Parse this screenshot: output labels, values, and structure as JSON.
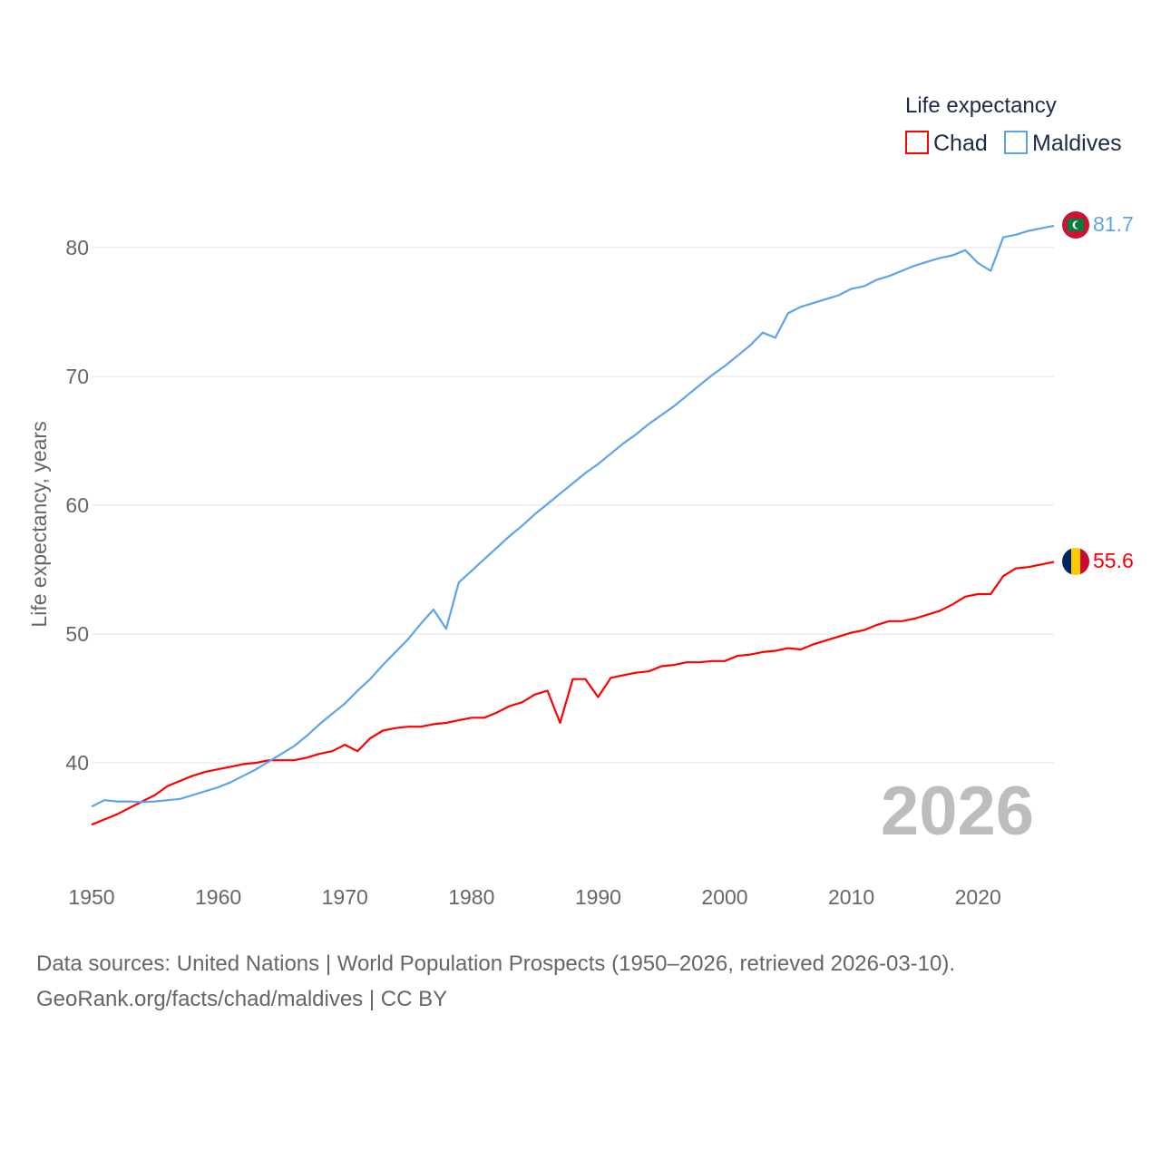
{
  "chart_data": {
    "type": "line",
    "title": "",
    "xlabel": "",
    "ylabel": "Life expectancy, years",
    "xlim": [
      1950,
      2026
    ],
    "ylim": [
      33,
      84
    ],
    "x_ticks": [
      "1950",
      "1960",
      "1970",
      "1980",
      "1990",
      "2000",
      "2010",
      "2020"
    ],
    "y_ticks": [
      "40",
      "50",
      "60",
      "70",
      "80"
    ],
    "grid": true,
    "legend": {
      "title": "Life expectancy",
      "placement": "top-right"
    },
    "year_label": "2026",
    "x": [
      1950,
      1951,
      1952,
      1953,
      1954,
      1955,
      1956,
      1957,
      1958,
      1959,
      1960,
      1961,
      1962,
      1963,
      1964,
      1965,
      1966,
      1967,
      1968,
      1969,
      1970,
      1971,
      1972,
      1973,
      1974,
      1975,
      1976,
      1977,
      1978,
      1979,
      1980,
      1981,
      1982,
      1983,
      1984,
      1985,
      1986,
      1987,
      1988,
      1989,
      1990,
      1991,
      1992,
      1993,
      1994,
      1995,
      1996,
      1997,
      1998,
      1999,
      2000,
      2001,
      2002,
      2003,
      2004,
      2005,
      2006,
      2007,
      2008,
      2009,
      2010,
      2011,
      2012,
      2013,
      2014,
      2015,
      2016,
      2017,
      2018,
      2019,
      2020,
      2021,
      2022,
      2023,
      2024,
      2025,
      2026
    ],
    "series": [
      {
        "name": "Chad",
        "color": "#ff0000",
        "end_label": "55.6",
        "values": [
          35.2,
          35.6,
          36.0,
          36.5,
          37.0,
          37.5,
          38.2,
          38.6,
          39.0,
          39.3,
          39.5,
          39.7,
          39.9,
          40.0,
          40.2,
          40.2,
          40.2,
          40.4,
          40.7,
          40.9,
          41.4,
          40.9,
          41.9,
          42.5,
          42.7,
          42.8,
          42.8,
          43.0,
          43.1,
          43.3,
          43.5,
          43.5,
          43.9,
          44.4,
          44.7,
          45.3,
          45.6,
          43.1,
          46.5,
          46.5,
          45.1,
          46.6,
          46.8,
          47.0,
          47.1,
          47.5,
          47.6,
          47.8,
          47.8,
          47.9,
          47.9,
          48.3,
          48.4,
          48.6,
          48.7,
          48.9,
          48.8,
          49.2,
          49.5,
          49.8,
          50.1,
          50.3,
          50.7,
          51.0,
          51.0,
          51.2,
          51.5,
          51.8,
          52.3,
          52.9,
          53.1,
          53.1,
          54.5,
          55.1,
          55.2,
          55.4,
          55.6
        ]
      },
      {
        "name": "Maldives",
        "color": "#5ea3ea",
        "end_label": "81.7",
        "values": [
          36.6,
          37.1,
          37.0,
          37.0,
          36.95,
          37.0,
          37.1,
          37.2,
          37.5,
          37.8,
          38.1,
          38.5,
          39.0,
          39.5,
          40.1,
          40.7,
          41.3,
          42.1,
          43.0,
          43.8,
          44.6,
          45.6,
          46.5,
          47.6,
          48.6,
          49.6,
          50.8,
          51.9,
          50.4,
          54.0,
          54.9,
          55.8,
          56.7,
          57.6,
          58.4,
          59.3,
          60.1,
          60.9,
          61.7,
          62.5,
          63.2,
          64.0,
          64.8,
          65.5,
          66.3,
          67.0,
          67.7,
          68.5,
          69.3,
          70.1,
          70.8,
          71.6,
          72.4,
          73.4,
          73.0,
          74.9,
          75.4,
          75.7,
          76.0,
          76.3,
          76.8,
          77.0,
          77.5,
          77.8,
          78.2,
          78.6,
          78.9,
          79.2,
          79.4,
          79.8,
          78.8,
          78.2,
          80.8,
          81.0,
          81.3,
          81.5,
          81.7
        ]
      }
    ]
  },
  "footer": {
    "line1": "Data sources: United Nations | World Population Prospects (1950–2026, retrieved 2026-03-10).",
    "line2": "GeoRank.org/facts/chad/maldives | CC BY"
  }
}
